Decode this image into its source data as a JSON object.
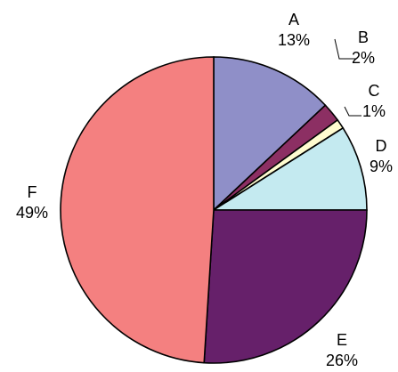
{
  "chart_data": {
    "type": "pie",
    "title": "",
    "legend": "none",
    "slices": [
      {
        "name": "A",
        "value": 13,
        "label": "13%",
        "color": "#8f8fc8"
      },
      {
        "name": "B",
        "value": 2,
        "label": "2%",
        "color": "#8c2f63"
      },
      {
        "name": "C",
        "value": 1,
        "label": "1%",
        "color": "#fffcd0"
      },
      {
        "name": "D",
        "value": 9,
        "label": "9%",
        "color": "#c4eaf0"
      },
      {
        "name": "E",
        "value": 26,
        "label": "26%",
        "color": "#66206a"
      },
      {
        "name": "F",
        "value": 49,
        "label": "49%",
        "color": "#f48080"
      }
    ],
    "start_angle_deg": 0,
    "direction": "clockwise"
  }
}
